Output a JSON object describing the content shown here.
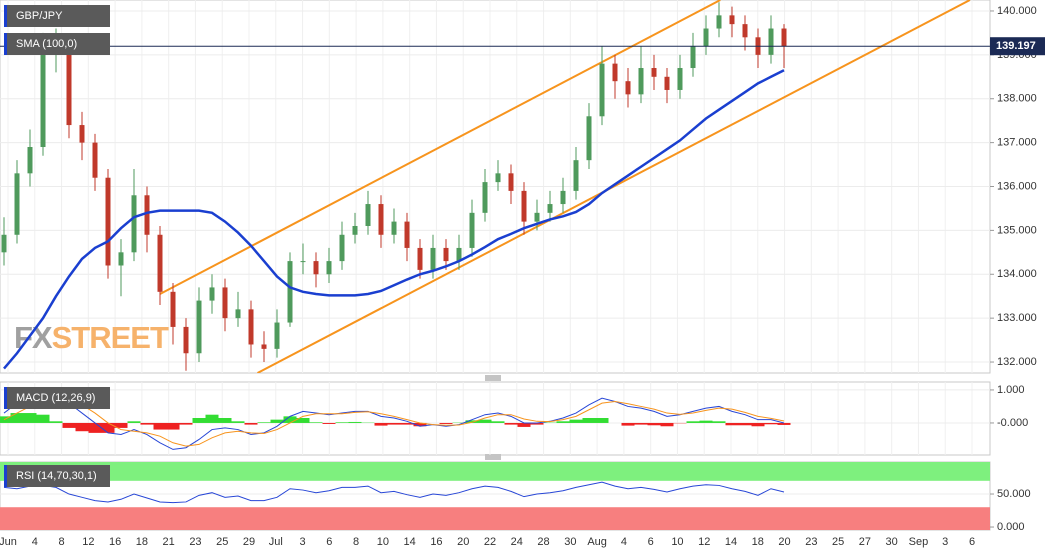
{
  "chart_data": [
    {
      "type": "candlestick",
      "title": "GBP/JPY",
      "indicator": "SMA (100,0)",
      "watermark": [
        "FX",
        "STREET"
      ],
      "x_labels": [
        "Jun",
        "4",
        "8",
        "12",
        "16",
        "18",
        "21",
        "23",
        "25",
        "29",
        "Jul",
        "3",
        "6",
        "8",
        "10",
        "14",
        "16",
        "20",
        "22",
        "24",
        "28",
        "30",
        "Aug",
        "4",
        "6",
        "10",
        "12",
        "14",
        "18",
        "20",
        "23",
        "25",
        "27",
        "30",
        "Sep",
        "3",
        "6"
      ],
      "open": [
        134.5,
        134.9,
        136.3,
        136.9,
        139.0,
        139.2,
        137.4,
        137.0,
        136.2,
        134.2,
        134.5,
        135.8,
        134.9,
        133.6,
        132.8,
        132.2,
        133.4,
        133.7,
        133.0,
        133.2,
        132.4,
        132.3,
        132.9,
        134.3,
        134.3,
        134.0,
        134.3,
        134.9,
        135.1,
        135.6,
        134.9,
        135.2,
        134.6,
        134.1,
        134.6,
        134.3,
        134.6,
        135.4,
        136.1,
        136.3,
        135.9,
        135.2,
        135.4,
        135.6,
        135.9,
        136.6,
        137.6,
        138.8,
        138.4,
        138.1,
        138.7,
        138.5,
        138.2,
        138.7,
        139.2,
        139.6,
        139.9,
        139.7,
        139.4,
        139.0,
        139.6
      ],
      "high": [
        135.3,
        136.6,
        137.3,
        139.5,
        139.6,
        139.3,
        137.7,
        137.2,
        136.4,
        134.8,
        136.4,
        136.0,
        135.1,
        133.8,
        133.0,
        133.7,
        134.0,
        133.9,
        133.6,
        133.4,
        132.7,
        133.2,
        134.5,
        134.7,
        134.5,
        134.6,
        135.2,
        135.4,
        135.9,
        135.8,
        135.5,
        135.4,
        134.8,
        134.9,
        134.8,
        134.9,
        135.7,
        136.4,
        136.6,
        136.5,
        136.1,
        135.7,
        135.9,
        136.2,
        136.9,
        137.9,
        139.2,
        139.0,
        138.7,
        139.2,
        139.0,
        138.7,
        139.0,
        139.5,
        139.9,
        140.2,
        140.1,
        139.9,
        139.6,
        139.9,
        139.7
      ],
      "low": [
        134.2,
        134.7,
        136.0,
        136.7,
        138.6,
        137.1,
        136.6,
        135.9,
        133.9,
        133.5,
        134.3,
        134.5,
        133.3,
        132.4,
        131.8,
        132.0,
        133.1,
        132.7,
        132.8,
        132.1,
        132.0,
        132.1,
        132.8,
        134.0,
        133.7,
        133.8,
        134.1,
        134.7,
        134.9,
        134.6,
        134.7,
        134.3,
        133.9,
        133.9,
        134.1,
        134.1,
        134.4,
        135.2,
        135.9,
        135.6,
        134.9,
        135.0,
        135.2,
        135.4,
        135.7,
        136.4,
        137.4,
        138.0,
        137.8,
        137.9,
        138.2,
        137.9,
        138.0,
        138.5,
        139.0,
        139.4,
        139.4,
        139.1,
        138.7,
        138.8,
        138.7
      ],
      "close": [
        134.9,
        136.3,
        136.9,
        139.0,
        139.2,
        137.4,
        137.0,
        136.2,
        134.2,
        134.5,
        135.8,
        134.9,
        133.6,
        132.8,
        132.2,
        133.4,
        133.7,
        133.0,
        133.2,
        132.4,
        132.3,
        132.9,
        134.3,
        134.3,
        134.0,
        134.3,
        134.9,
        135.1,
        135.6,
        134.9,
        135.2,
        134.6,
        134.1,
        134.6,
        134.3,
        134.6,
        135.4,
        136.1,
        136.3,
        135.9,
        135.2,
        135.4,
        135.6,
        135.9,
        136.6,
        137.6,
        138.8,
        138.4,
        138.1,
        138.7,
        138.5,
        138.2,
        138.7,
        139.2,
        139.6,
        139.9,
        139.7,
        139.4,
        139.0,
        139.6,
        139.197
      ],
      "up_color": "#4f9a5c",
      "down_color": "#c0392b",
      "sma": {
        "color": "#1a3fd0",
        "values": [
          131.85,
          132.2,
          132.6,
          133.0,
          133.5,
          133.95,
          134.35,
          134.6,
          134.75,
          135.05,
          135.3,
          135.4,
          135.45,
          135.45,
          135.45,
          135.45,
          135.4,
          135.2,
          134.95,
          134.65,
          134.3,
          133.95,
          133.7,
          133.6,
          133.55,
          133.52,
          133.52,
          133.52,
          133.55,
          133.62,
          133.75,
          133.88,
          134.0,
          134.08,
          134.18,
          134.3,
          134.45,
          134.62,
          134.8,
          134.92,
          135.05,
          135.15,
          135.25,
          135.32,
          135.42,
          135.6,
          135.85,
          136.05,
          136.25,
          136.45,
          136.65,
          136.85,
          137.05,
          137.3,
          137.55,
          137.75,
          137.95,
          138.15,
          138.35,
          138.5,
          138.65
        ]
      },
      "trendlines": [
        {
          "color": "#f7941d",
          "start": [
            12,
            133.55
          ],
          "end": [
            55.1,
            140.25
          ]
        },
        {
          "color": "#f7941d",
          "start": [
            19.5,
            131.75
          ],
          "end": [
            74.3,
            140.25
          ]
        }
      ],
      "last_price": {
        "value": 139.197,
        "label": "139.197"
      },
      "ylim": [
        131.75,
        140.25
      ],
      "yticks": [
        {
          "value": 132,
          "label": "132.000"
        },
        {
          "value": 133,
          "label": "133.000"
        },
        {
          "value": 134,
          "label": "134.000"
        },
        {
          "value": 135,
          "label": "135.000"
        },
        {
          "value": 136,
          "label": "136.000"
        },
        {
          "value": 137,
          "label": "137.000"
        },
        {
          "value": 138,
          "label": "138.000"
        },
        {
          "value": 139,
          "label": "139.000"
        },
        {
          "value": 140,
          "label": "140.000"
        }
      ],
      "grid": true
    },
    {
      "type": "macd",
      "title": "MACD (12,26,9)",
      "macd": {
        "color": "#2746d6",
        "values": [
          0.3,
          0.6,
          0.8,
          0.95,
          0.85,
          0.6,
          0.3,
          0.0,
          -0.3,
          -0.35,
          -0.2,
          -0.35,
          -0.6,
          -0.8,
          -0.75,
          -0.5,
          -0.2,
          -0.15,
          -0.2,
          -0.35,
          -0.3,
          -0.1,
          0.2,
          0.35,
          0.3,
          0.25,
          0.3,
          0.35,
          0.35,
          0.2,
          0.15,
          0.05,
          -0.1,
          -0.05,
          -0.1,
          -0.05,
          0.1,
          0.25,
          0.3,
          0.2,
          0.0,
          0.0,
          0.05,
          0.15,
          0.3,
          0.55,
          0.75,
          0.65,
          0.5,
          0.45,
          0.35,
          0.2,
          0.25,
          0.35,
          0.45,
          0.5,
          0.35,
          0.25,
          0.1,
          0.1,
          0.0
        ]
      },
      "signal": {
        "color": "#f7941d",
        "values": [
          0.1,
          0.3,
          0.5,
          0.7,
          0.8,
          0.75,
          0.55,
          0.3,
          0.0,
          -0.2,
          -0.25,
          -0.3,
          -0.4,
          -0.6,
          -0.7,
          -0.65,
          -0.45,
          -0.3,
          -0.25,
          -0.3,
          -0.32,
          -0.2,
          0.0,
          0.2,
          0.28,
          0.28,
          0.28,
          0.32,
          0.34,
          0.28,
          0.2,
          0.1,
          0.0,
          -0.05,
          -0.07,
          -0.06,
          0.02,
          0.15,
          0.25,
          0.25,
          0.12,
          0.05,
          0.04,
          0.1,
          0.2,
          0.4,
          0.6,
          0.65,
          0.58,
          0.5,
          0.42,
          0.3,
          0.26,
          0.3,
          0.38,
          0.45,
          0.42,
          0.32,
          0.2,
          0.14,
          0.06
        ]
      },
      "histogram": {
        "up_color": "#33dd33",
        "down_color": "#ee2222",
        "values": [
          0.2,
          0.3,
          0.3,
          0.25,
          0.05,
          -0.15,
          -0.25,
          -0.3,
          -0.3,
          -0.15,
          0.05,
          -0.05,
          -0.2,
          -0.2,
          -0.05,
          0.15,
          0.25,
          0.15,
          0.05,
          -0.05,
          0.02,
          0.1,
          0.2,
          0.15,
          0.02,
          -0.03,
          0.02,
          0.03,
          0.01,
          -0.08,
          -0.05,
          -0.05,
          -0.1,
          0.0,
          -0.03,
          0.01,
          0.08,
          0.1,
          0.05,
          -0.05,
          -0.12,
          -0.05,
          0.01,
          0.05,
          0.1,
          0.15,
          0.15,
          0.0,
          -0.08,
          -0.05,
          -0.07,
          -0.1,
          -0.01,
          0.05,
          0.07,
          0.05,
          -0.07,
          -0.07,
          -0.1,
          -0.04,
          -0.06
        ]
      },
      "ylim": [
        -0.97,
        1.24
      ],
      "yticks": [
        {
          "value": 1,
          "label": "1.000"
        },
        {
          "value": 0,
          "label": "-0.000"
        }
      ]
    },
    {
      "type": "rsi",
      "title": "RSI (14,70,30,1)",
      "color": "#2746d6",
      "values": [
        60,
        58,
        62,
        63,
        60,
        50,
        45,
        40,
        38,
        42,
        50,
        44,
        38,
        37,
        38,
        48,
        52,
        45,
        47,
        40,
        40,
        45,
        58,
        56,
        52,
        55,
        60,
        60,
        62,
        52,
        54,
        49,
        45,
        50,
        48,
        52,
        58,
        62,
        60,
        54,
        46,
        50,
        52,
        55,
        60,
        64,
        68,
        62,
        58,
        60,
        57,
        53,
        58,
        62,
        64,
        63,
        58,
        54,
        48,
        58,
        53
      ],
      "overbought": 70,
      "oversold": 30,
      "overbought_color": "#7ef07e",
      "oversold_color": "#f77f7f",
      "ylim": [
        -4.5,
        98.5
      ],
      "yticks": [
        {
          "value": 50,
          "label": "50.000"
        },
        {
          "value": 0,
          "label": "0.000"
        }
      ]
    }
  ]
}
